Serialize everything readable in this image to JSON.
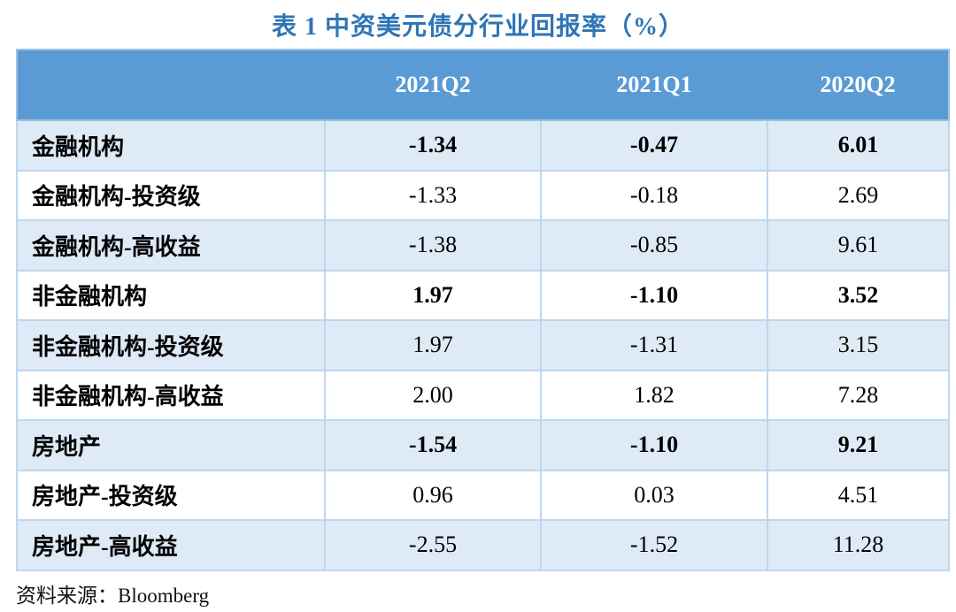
{
  "chart_data": {
    "type": "table",
    "title": "表 1 中资美元债分行业回报率（%）",
    "columns": [
      "2021Q2",
      "2021Q1",
      "2020Q2"
    ],
    "rows": [
      {
        "label": "金融机构",
        "values": [
          "-1.34",
          "-0.47",
          "6.01"
        ],
        "bold": true
      },
      {
        "label": "金融机构-投资级",
        "values": [
          "-1.33",
          "-0.18",
          "2.69"
        ],
        "bold": false
      },
      {
        "label": "金融机构-高收益",
        "values": [
          "-1.38",
          "-0.85",
          "9.61"
        ],
        "bold": false
      },
      {
        "label": "非金融机构",
        "values": [
          "1.97",
          "-1.10",
          "3.52"
        ],
        "bold": true
      },
      {
        "label": "非金融机构-投资级",
        "values": [
          "1.97",
          "-1.31",
          "3.15"
        ],
        "bold": false
      },
      {
        "label": "非金融机构-高收益",
        "values": [
          "2.00",
          "1.82",
          "7.28"
        ],
        "bold": false
      },
      {
        "label": "房地产",
        "values": [
          "-1.54",
          "-1.10",
          "9.21"
        ],
        "bold": true
      },
      {
        "label": "房地产-投资级",
        "values": [
          "0.96",
          "0.03",
          "4.51"
        ],
        "bold": false
      },
      {
        "label": "房地产-高收益",
        "values": [
          "-2.55",
          "-1.52",
          "11.28"
        ],
        "bold": false
      }
    ],
    "source": "资料来源：Bloomberg",
    "layout": {
      "stripe_rows": [
        0,
        2,
        4,
        6,
        8
      ],
      "bold_rows": [
        0,
        3,
        6
      ]
    }
  },
  "colors": {
    "header_bg": "#5B9BD5",
    "stripe_bg": "#DEEAF6",
    "border": "#9DC3E6",
    "title_text": "#2E75B6",
    "header_text": "#FFFFFF",
    "body_text": "#000000"
  }
}
